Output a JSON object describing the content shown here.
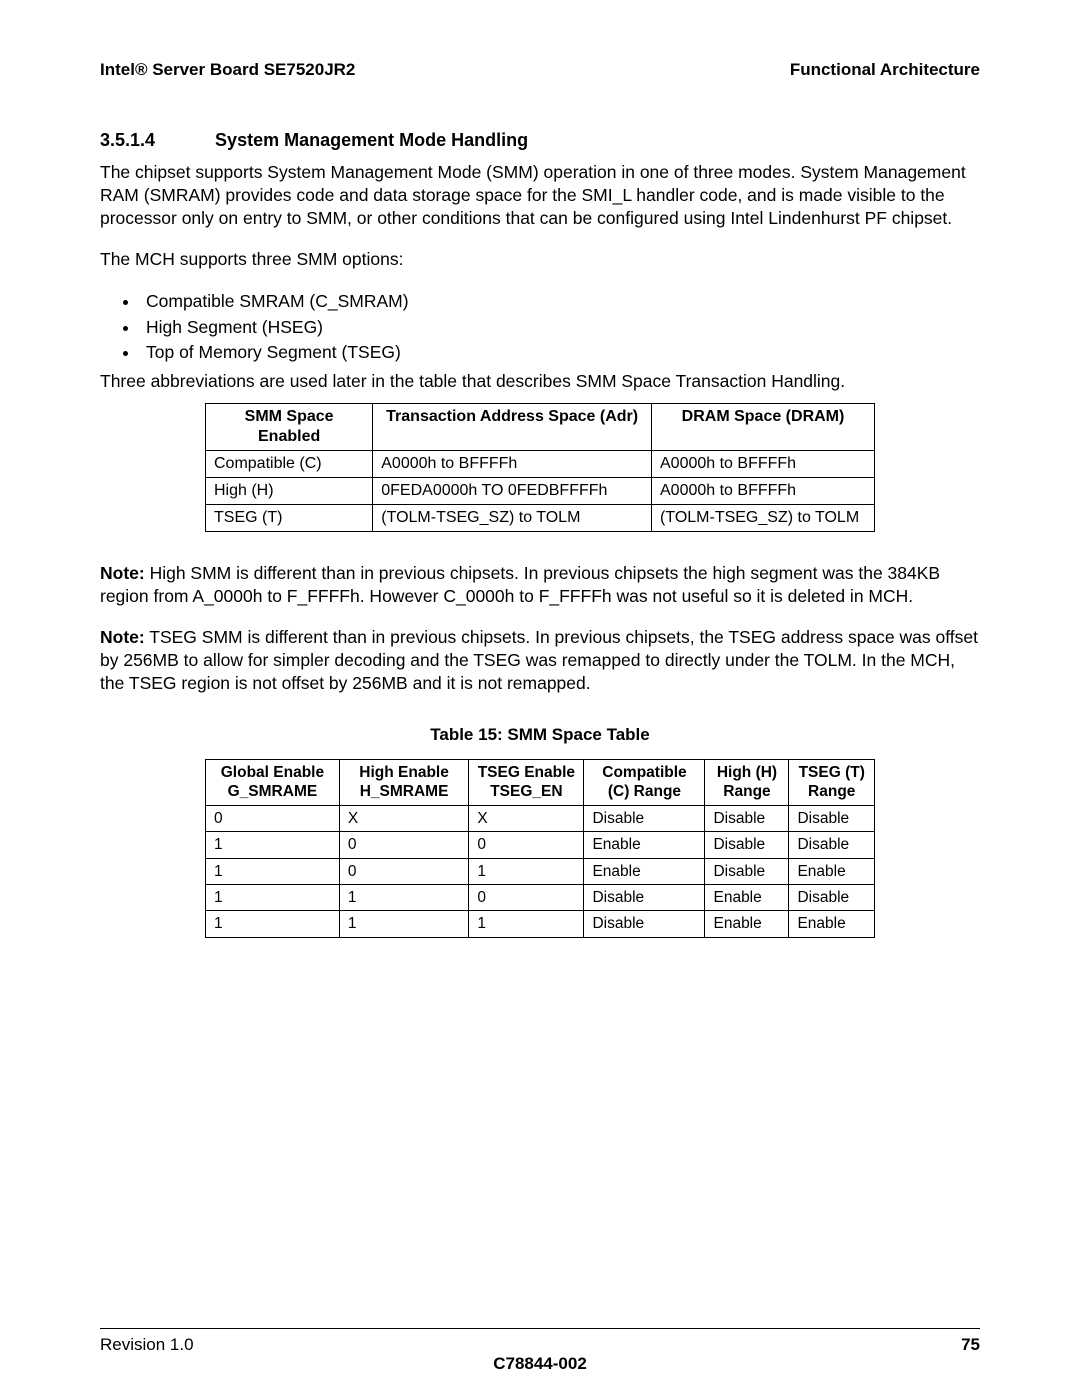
{
  "header": {
    "left": "Intel® Server Board SE7520JR2",
    "right": "Functional Architecture"
  },
  "section": {
    "number": "3.5.1.4",
    "title": "System Management Mode Handling"
  },
  "paragraphs": {
    "p1": "The chipset supports System Management Mode (SMM) operation in one of three modes. System Management RAM (SMRAM) provides code and data storage space for the SMI_L handler code, and is made visible to the processor only on entry to SMM, or other conditions that can be configured using Intel Lindenhurst PF chipset.",
    "p2": "The MCH supports three SMM options:",
    "p3": "Three abbreviations are used later in the table that describes SMM Space Transaction Handling.",
    "note1_label": "Note:",
    "note1_body": " High SMM is different than in previous chipsets. In previous chipsets the high segment was the 384KB region from A_0000h to F_FFFFh. However C_0000h to F_FFFFh was not useful so it is deleted in MCH.",
    "note2_label": "Note:",
    "note2_body": " TSEG SMM is different than in previous chipsets. In previous chipsets, the TSEG address space was offset by 256MB to allow for simpler decoding and the TSEG was remapped to directly under the TOLM. In the MCH, the TSEG region is not offset by 256MB and it is not remapped."
  },
  "list": {
    "items": [
      "Compatible SMRAM (C_SMRAM)",
      "High Segment (HSEG)",
      "Top of Memory Segment (TSEG)"
    ]
  },
  "table1": {
    "headers": [
      "SMM Space Enabled",
      "Transaction Address Space (Adr)",
      "DRAM Space (DRAM)"
    ],
    "rows": [
      [
        "Compatible (C)",
        "A0000h to BFFFFh",
        "A0000h to BFFFFh"
      ],
      [
        "High (H)",
        "0FEDA0000h TO 0FEDBFFFFh",
        "A0000h to BFFFFh"
      ],
      [
        "TSEG (T)",
        "(TOLM-TSEG_SZ) to TOLM",
        "(TOLM-TSEG_SZ) to TOLM"
      ]
    ]
  },
  "table2": {
    "caption": "Table 15: SMM Space Table",
    "headers": [
      "Global Enable G_SMRAME",
      "High Enable H_SMRAME",
      "TSEG Enable TSEG_EN",
      "Compatible (C) Range",
      "High (H) Range",
      "TSEG (T) Range"
    ],
    "rows": [
      [
        "0",
        "X",
        "X",
        "Disable",
        "Disable",
        "Disable"
      ],
      [
        "1",
        "0",
        "0",
        "Enable",
        "Disable",
        "Disable"
      ],
      [
        "1",
        "0",
        "1",
        "Enable",
        "Disable",
        "Enable"
      ],
      [
        "1",
        "1",
        "0",
        "Disable",
        "Enable",
        "Disable"
      ],
      [
        "1",
        "1",
        "1",
        "Disable",
        "Enable",
        "Enable"
      ]
    ]
  },
  "footer": {
    "revision": "Revision 1.0",
    "docnum": "C78844-002",
    "page": "75"
  }
}
